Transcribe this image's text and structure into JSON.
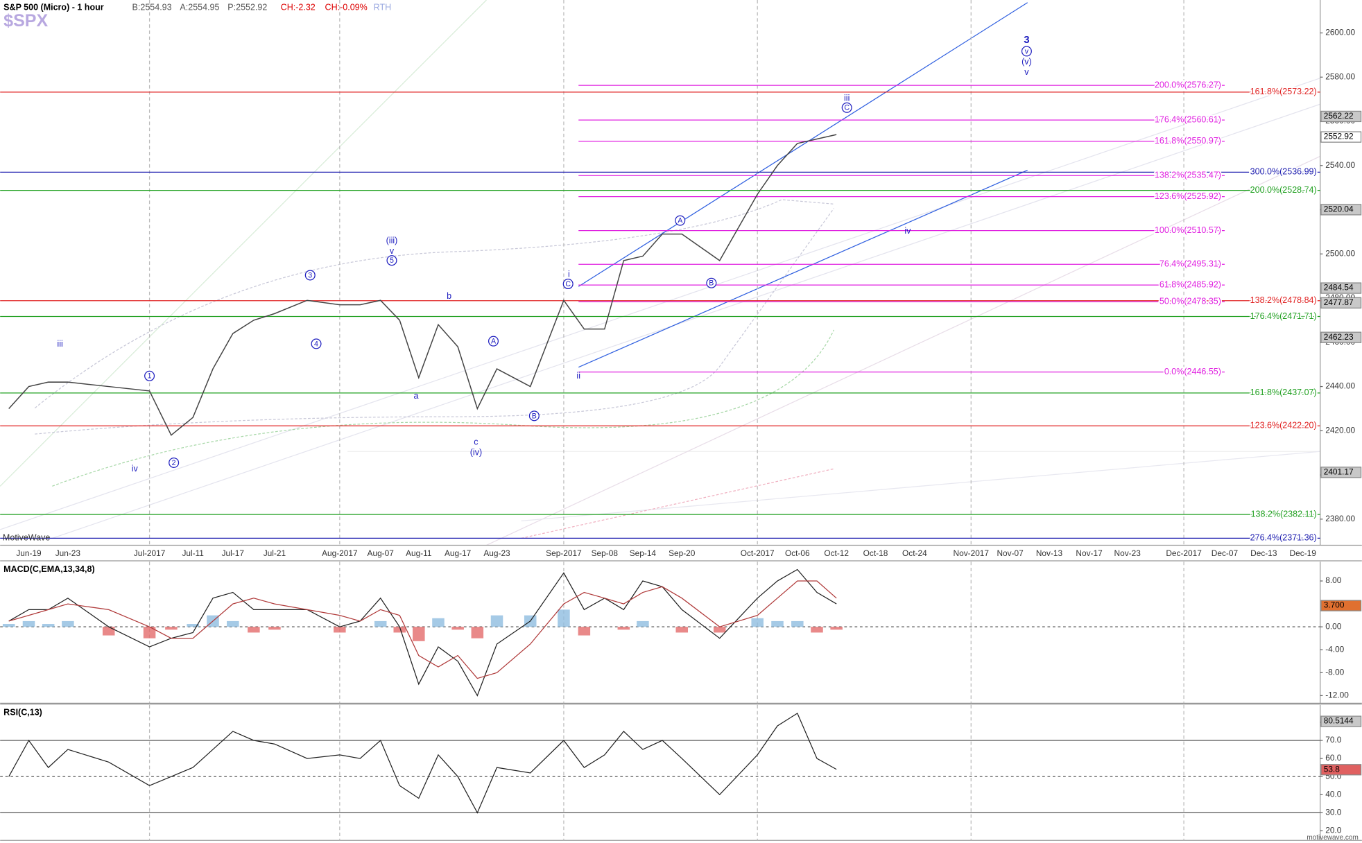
{
  "chart_data": [
    {
      "type": "line",
      "title": "S&P 500 (Micro) - 1 hour",
      "symbol": "$SPX",
      "quote": [
        "B:2554.93",
        "A:2554.95",
        "P:2552.92",
        "CH:-2.32",
        "CH:-0.09%",
        "RTH"
      ],
      "watermark": "MotiveWave",
      "categories": [
        null,
        "Jun-19",
        null,
        "Jun-23",
        null,
        "Jul-2017",
        null,
        "Jul-11",
        null,
        "Jul-17",
        null,
        "Jul-21",
        null,
        "Aug-2017",
        null,
        "Aug-07",
        null,
        "Aug-11",
        null,
        "Aug-17",
        null,
        "Aug-23",
        null,
        "Sep-2017",
        null,
        "Sep-08",
        null,
        "Sep-14",
        null,
        "Sep-20",
        null,
        "Oct-2017",
        null,
        "Oct-06",
        null,
        "Oct-12",
        null,
        "Oct-18",
        null,
        "Oct-24",
        null,
        "Nov-2017",
        null,
        "Nov-07",
        null,
        "Nov-13",
        null,
        "Nov-17",
        null,
        "Nov-23",
        null,
        "Dec-2017",
        null,
        "Dec-07",
        null,
        "Dec-13",
        null,
        "Dec-19"
      ],
      "values": [
        2430,
        2440,
        2442,
        2442,
        2440,
        2438,
        2418,
        2426,
        2448,
        2464,
        2470,
        2473,
        2479,
        2477,
        2477,
        2479,
        2470,
        2444,
        2468,
        2458,
        2430,
        2448,
        2440,
        2479,
        2466,
        2466,
        2497,
        2499,
        2509,
        2509,
        2497,
        2527,
        2540,
        2550,
        2552,
        2554,
        null,
        null,
        null,
        null,
        null,
        null,
        null,
        null,
        null,
        null,
        null,
        null,
        null,
        null,
        null,
        null,
        null,
        null,
        null,
        null,
        null,
        null
      ],
      "color": "#444444",
      "ylim": [
        2368.2,
        2614.9
      ],
      "yticks": [
        {
          "value": 2380,
          "label": "2380.00"
        },
        {
          "value": 2400,
          "label": "2400.00"
        },
        {
          "value": 2420,
          "label": "2420.00"
        },
        {
          "value": 2440,
          "label": "2440.00"
        },
        {
          "value": 2460,
          "label": "2460.00"
        },
        {
          "value": 2480,
          "label": "2480.00"
        },
        {
          "value": 2500,
          "label": "2500.00"
        },
        {
          "value": 2520,
          "label": "2520.00"
        },
        {
          "value": 2540,
          "label": "2540.00"
        },
        {
          "value": 2560,
          "label": "2560.00"
        },
        {
          "value": 2580,
          "label": "2580.00"
        },
        {
          "value": 2600,
          "label": "2600.00"
        }
      ],
      "levels": [
        {
          "value": 2576.27,
          "label": "200.0%(2576.27)",
          "color": "#e020e0",
          "full": false
        },
        {
          "value": 2573.22,
          "label": "161.8%(2573.22)",
          "color": "#e02020",
          "full": true
        },
        {
          "value": 2560.61,
          "label": "176.4%(2560.61)",
          "color": "#e020e0",
          "full": false
        },
        {
          "value": 2550.97,
          "label": "161.8%(2550.97)",
          "color": "#e020e0",
          "full": false
        },
        {
          "value": 2536.99,
          "label": "300.0%(2536.99)",
          "color": "#2020b0",
          "full": true
        },
        {
          "value": 2535.47,
          "label": "138.2%(2535.47)",
          "color": "#e020e0",
          "full": false
        },
        {
          "value": 2528.74,
          "label": "200.0%(2528.74)",
          "color": "#20a020",
          "full": true
        },
        {
          "value": 2525.92,
          "label": "123.6%(2525.92)",
          "color": "#e020e0",
          "full": false
        },
        {
          "value": 2510.57,
          "label": "100.0%(2510.57)",
          "color": "#e020e0",
          "full": false
        },
        {
          "value": 2495.31,
          "label": "76.4%(2495.31)",
          "color": "#e020e0",
          "full": false
        },
        {
          "value": 2485.92,
          "label": "61.8%(2485.92)",
          "color": "#e020e0",
          "full": false
        },
        {
          "value": 2478.84,
          "label": "138.2%(2478.84)",
          "color": "#e02020",
          "full": true
        },
        {
          "value": 2478.35,
          "label": "50.0%(2478.35)",
          "color": "#e020e0",
          "full": false
        },
        {
          "value": 2471.71,
          "label": "176.4%(2471.71)",
          "color": "#20a020",
          "full": true
        },
        {
          "value": 2446.55,
          "label": "0.0%(2446.55)",
          "color": "#e020e0",
          "full": false
        },
        {
          "value": 2437.07,
          "label": "161.8%(2437.07)",
          "color": "#20a020",
          "full": true
        },
        {
          "value": 2422.2,
          "label": "123.6%(2422.20)",
          "color": "#e02020",
          "full": true
        },
        {
          "value": 2382.11,
          "label": "138.2%(2382.11)",
          "color": "#20a020",
          "full": true
        },
        {
          "value": 2371.36,
          "label": "276.4%(2371.36)",
          "color": "#2020b0",
          "full": true
        }
      ],
      "price_markers": [
        2562.22,
        2552.92,
        2520.04,
        2484.54,
        2477.87,
        2462.23,
        2401.17
      ],
      "wave_labels": [
        "iii",
        "iv",
        "1",
        "2",
        "3",
        "4",
        "(iii)",
        "v",
        "5",
        "a",
        "b",
        "c",
        "(iv)",
        "A",
        "B",
        "i",
        "C",
        "ii",
        "A",
        "B",
        "iii",
        "C",
        "iv",
        "3",
        "v",
        "(v)",
        "v"
      ]
    },
    {
      "type": "line",
      "title": "MACD(C,EMA,13,34,8)",
      "series": [
        {
          "color": "#222222",
          "values": [
            1,
            3,
            3,
            5,
            0,
            -3.5,
            -2,
            -1,
            5,
            6,
            3,
            3,
            3,
            0,
            1,
            5,
            0,
            -10,
            -3.5,
            -6,
            -12,
            -3,
            1,
            9.4,
            3,
            5,
            3,
            8,
            7,
            3,
            -2,
            5,
            8,
            10,
            6,
            4,
            null,
            null,
            null,
            null,
            null,
            null,
            null,
            null,
            null,
            null,
            null,
            null,
            null,
            null,
            null,
            null,
            null,
            null,
            null,
            null,
            null,
            null
          ]
        },
        {
          "color": "#b03a3a",
          "values": [
            1,
            2,
            3,
            4,
            3,
            0,
            -2,
            -2,
            1,
            4,
            5,
            4,
            3,
            2,
            1,
            3,
            2,
            -5,
            -7,
            -5,
            -9,
            -8,
            -3,
            4,
            6,
            5,
            4,
            6,
            7,
            5,
            0,
            2,
            5,
            8,
            8,
            5,
            null,
            null,
            null,
            null,
            null,
            null,
            null,
            null,
            null,
            null,
            null,
            null,
            null,
            null,
            null,
            null,
            null,
            null,
            null,
            null,
            null,
            null
          ]
        }
      ],
      "histogram": {
        "positive_color": "#8fbde0",
        "negative_color": "#e36b6b",
        "values": [
          0.5,
          1,
          0.5,
          1,
          -1.5,
          -2,
          -0.5,
          0.5,
          2,
          1,
          -1,
          -0.5,
          0,
          -1,
          0,
          1,
          -1,
          -2.5,
          1.5,
          -0.5,
          -2,
          2,
          2,
          3,
          -1.5,
          0,
          -0.5,
          1,
          0,
          -1,
          -1,
          1.5,
          1,
          1,
          -1,
          -0.5,
          null,
          null,
          null,
          null,
          null,
          null,
          null,
          null,
          null,
          null,
          null,
          null,
          null,
          null,
          null,
          null,
          null,
          null,
          null,
          null,
          null,
          null
        ]
      },
      "ylim": [
        -13.33,
        11.36
      ],
      "yticks": [
        {
          "value": 8,
          "label": "8.00"
        },
        {
          "value": 0,
          "label": "0.00"
        },
        {
          "value": -4,
          "label": "-4.00"
        },
        {
          "value": -8,
          "label": "-8.00"
        },
        {
          "value": -12,
          "label": "-12.00"
        }
      ],
      "markers": [
        {
          "value": 3.7,
          "label": "3.700"
        }
      ]
    },
    {
      "type": "line",
      "title": "RSI(C,13)",
      "series": [
        {
          "color": "#222222",
          "values": [
            50,
            70,
            55,
            65,
            58,
            45,
            50,
            55,
            65,
            75,
            70,
            68,
            60,
            62,
            60,
            70,
            45,
            38,
            62,
            50,
            30,
            55,
            52,
            70,
            55,
            62,
            75,
            65,
            70,
            60,
            40,
            62,
            78,
            85,
            60,
            54,
            null,
            null,
            null,
            null,
            null,
            null,
            null,
            null,
            null,
            null,
            null,
            null,
            null,
            null,
            null,
            null,
            null,
            null,
            null,
            null,
            null,
            null
          ]
        }
      ],
      "ylim": [
        14.7,
        89.6
      ],
      "yticks": [
        {
          "value": 80,
          "label": "80.0"
        },
        {
          "value": 70,
          "label": "70.0"
        },
        {
          "value": 60,
          "label": "60.0"
        },
        {
          "value": 50,
          "label": "50.0"
        },
        {
          "value": 40,
          "label": "40.0"
        },
        {
          "value": 30,
          "label": "30.0"
        },
        {
          "value": 20,
          "label": "20.0"
        }
      ],
      "levels": [
        70,
        30
      ],
      "dashed_levels": [
        50
      ],
      "markers": [
        80.5144,
        53.8
      ]
    }
  ],
  "footer": "motivewave.com"
}
